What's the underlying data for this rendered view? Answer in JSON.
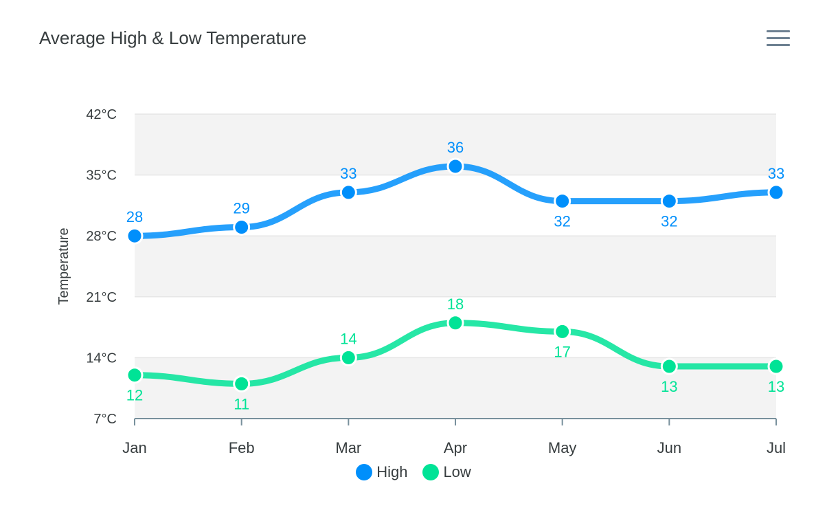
{
  "title": "Average High & Low Temperature",
  "menu": {
    "icon": "hamburger-menu-icon"
  },
  "chart_data": {
    "type": "line",
    "curve": "smooth",
    "categories": [
      "Jan",
      "Feb",
      "Mar",
      "Apr",
      "May",
      "Jun",
      "Jul"
    ],
    "series": [
      {
        "name": "High",
        "values": [
          28,
          29,
          33,
          36,
          32,
          32,
          33
        ],
        "color": "#008ffb",
        "label_positions": [
          "above",
          "above",
          "above",
          "above",
          "below",
          "below",
          "above"
        ]
      },
      {
        "name": "Low",
        "values": [
          12,
          11,
          14,
          18,
          17,
          13,
          13
        ],
        "color": "#00e396",
        "label_positions": [
          "below",
          "below",
          "above",
          "above",
          "below",
          "below",
          "below"
        ]
      }
    ],
    "ylabel": "Temperature",
    "ylim": [
      7,
      42
    ],
    "y_ticks": [
      "7°C",
      "14°C",
      "21°C",
      "28°C",
      "35°C",
      "42°C"
    ],
    "y_tick_values": [
      7,
      14,
      21,
      28,
      35,
      42
    ],
    "grid": true,
    "grid_row_colors": [
      "#f3f3f3",
      "#ffffff"
    ],
    "legend": "bottom-center"
  }
}
